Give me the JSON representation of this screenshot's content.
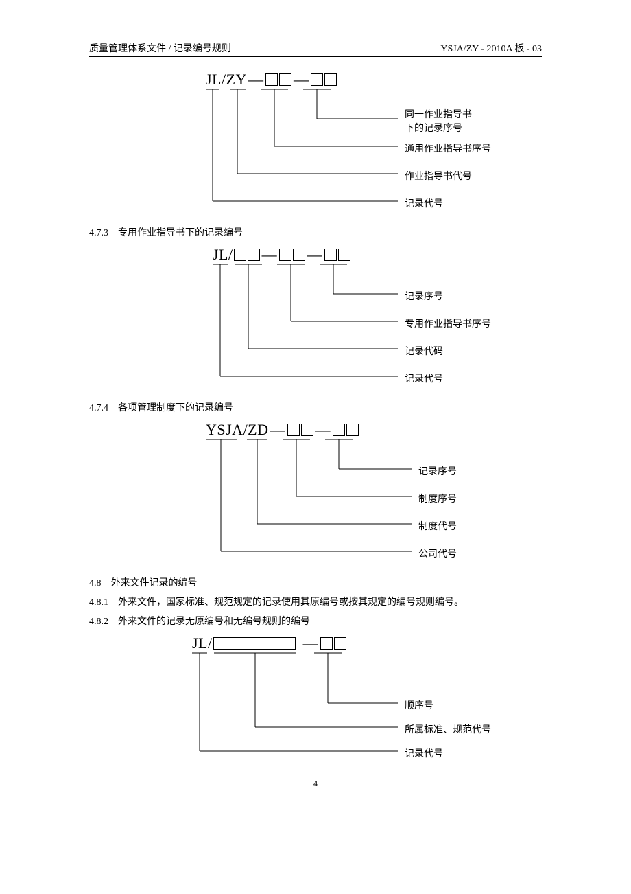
{
  "header": {
    "left": "质量管理体系文件 / 记录编号规则",
    "right": "YSJA/ZY - 2010A 板 - 03"
  },
  "diagram1": {
    "prefix": "JL/ZY",
    "labels": [
      "同一作业指导书下的记录序号",
      "通用作业指导书序号",
      "作业指导书代号",
      "记录代号"
    ]
  },
  "section473": "4.7.3　专用作业指导书下的记录编号",
  "diagram2": {
    "prefix": "JL/",
    "labels": [
      "记录序号",
      "专用作业指导书序号",
      "记录代码",
      "记录代号"
    ]
  },
  "section474": "4.7.4　各项管理制度下的记录编号",
  "diagram3": {
    "prefix": "YSJA/ZD",
    "labels": [
      "记录序号",
      "制度序号",
      "制度代号",
      "公司代号"
    ]
  },
  "section48": "4.8　外来文件记录的编号",
  "section481": "4.8.1　外来文件，国家标准、规范规定的记录使用其原编号或按其规定的编号规则编号。",
  "section482": "4.8.2　外来文件的记录无原编号和无编号规则的编号",
  "diagram4": {
    "prefix": "JL/",
    "labels": [
      "顺序号",
      "所属标准、规范代号",
      "记录代号"
    ]
  },
  "pageNum": "4"
}
